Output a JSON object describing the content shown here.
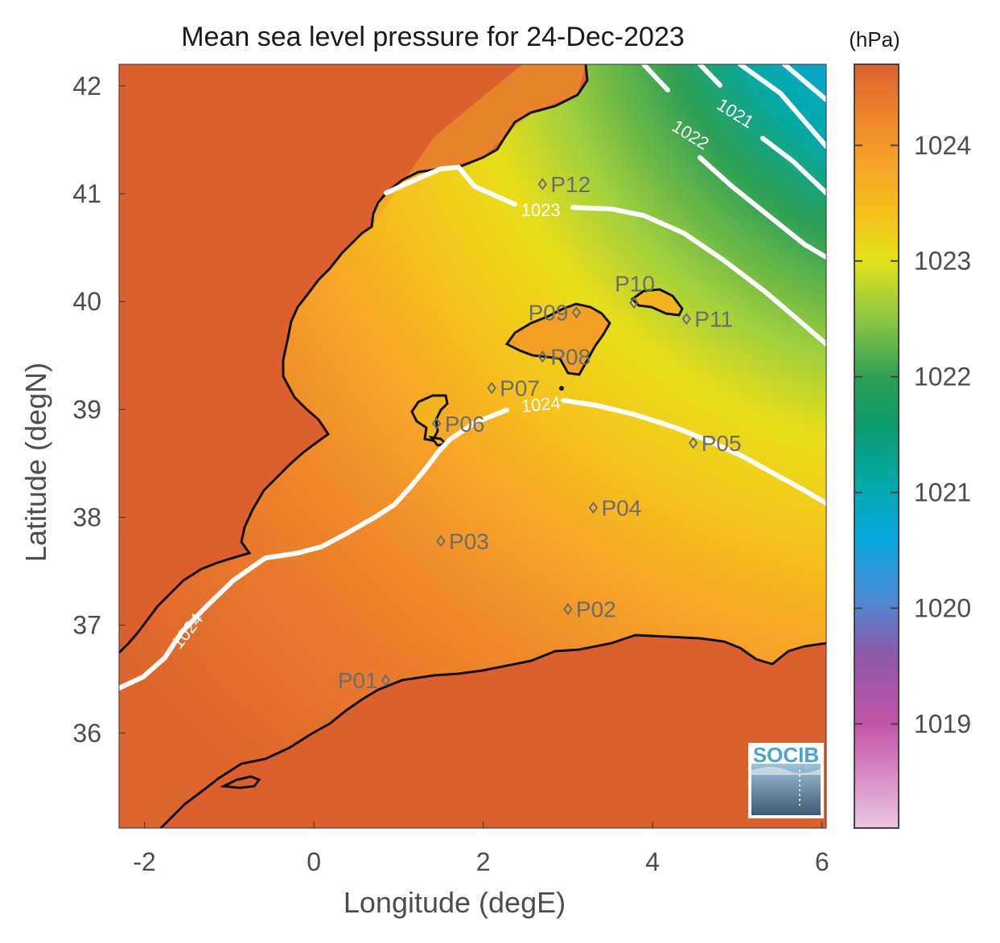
{
  "title": "Mean sea level pressure for 24-Dec-2023",
  "xlabel": "Longitude (degE)",
  "ylabel": "Latitude (degN)",
  "colorbar": {
    "unit": "(hPa)",
    "range": [
      1018.1,
      1024.7
    ],
    "ticks": [
      1019,
      1020,
      1021,
      1022,
      1023,
      1024
    ],
    "colormap": [
      {
        "v": 1018.1,
        "color": "#ecc6df"
      },
      {
        "v": 1019.0,
        "color": "#c354a8"
      },
      {
        "v": 1019.6,
        "color": "#8d5aa8"
      },
      {
        "v": 1020.1,
        "color": "#4a8cd6"
      },
      {
        "v": 1020.6,
        "color": "#08a8e0"
      },
      {
        "v": 1021.1,
        "color": "#04a9a6"
      },
      {
        "v": 1021.6,
        "color": "#0b9a6a"
      },
      {
        "v": 1022.0,
        "color": "#2fa054"
      },
      {
        "v": 1022.5,
        "color": "#8dc643"
      },
      {
        "v": 1023.0,
        "color": "#e2e21a"
      },
      {
        "v": 1023.4,
        "color": "#f6c21c"
      },
      {
        "v": 1023.8,
        "color": "#f6a528"
      },
      {
        "v": 1024.2,
        "color": "#f08a2a"
      },
      {
        "v": 1024.7,
        "color": "#db602e"
      }
    ]
  },
  "map": {
    "xlim": [
      -2.3,
      6.05
    ],
    "ylim": [
      35.12,
      42.2
    ],
    "xticks": [
      -2,
      0,
      2,
      4,
      6
    ],
    "yticks": [
      36,
      37,
      38,
      39,
      40,
      41,
      42
    ],
    "land_color": "#db602e"
  },
  "contours": [
    {
      "label": "1024",
      "label_at": [
        -1.5,
        36.95
      ]
    },
    {
      "label": "1024",
      "label_at": [
        2.68,
        39.05
      ]
    },
    {
      "label": "1023",
      "label_at": [
        2.68,
        40.85
      ]
    },
    {
      "label": "1022",
      "label_at": [
        4.45,
        41.55
      ]
    },
    {
      "label": "1021",
      "label_at": [
        4.98,
        41.75
      ]
    }
  ],
  "stations": [
    {
      "name": "P01",
      "lon": 0.85,
      "lat": 36.49,
      "label_side": "left"
    },
    {
      "name": "P02",
      "lon": 3.0,
      "lat": 37.15,
      "label_side": "right"
    },
    {
      "name": "P03",
      "lon": 1.5,
      "lat": 37.78,
      "label_side": "right"
    },
    {
      "name": "P04",
      "lon": 3.3,
      "lat": 38.09,
      "label_side": "right"
    },
    {
      "name": "P05",
      "lon": 4.48,
      "lat": 38.69,
      "label_side": "right"
    },
    {
      "name": "P06",
      "lon": 1.45,
      "lat": 38.87,
      "label_side": "right"
    },
    {
      "name": "P07",
      "lon": 2.1,
      "lat": 39.2,
      "label_side": "right"
    },
    {
      "name": "P08",
      "lon": 2.7,
      "lat": 39.49,
      "label_side": "right"
    },
    {
      "name": "P09",
      "lon": 3.1,
      "lat": 39.9,
      "label_side": "left"
    },
    {
      "name": "P10",
      "lon": 3.78,
      "lat": 39.99,
      "label_side": "above"
    },
    {
      "name": "P11",
      "lon": 4.4,
      "lat": 39.84,
      "label_side": "right"
    },
    {
      "name": "P12",
      "lon": 2.7,
      "lat": 41.09,
      "label_side": "right"
    }
  ],
  "logo": {
    "text": "SOCIB"
  }
}
